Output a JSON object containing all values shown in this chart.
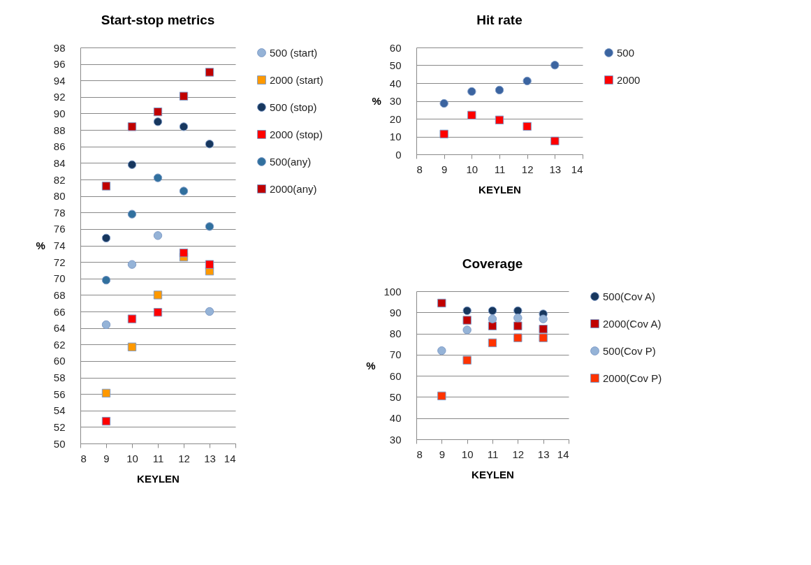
{
  "chart_data": [
    {
      "type": "scatter",
      "title": "Start-stop metrics",
      "xlabel": "KEYLEN",
      "ylabel": "%",
      "x": [
        9,
        10,
        11,
        12,
        13
      ],
      "xlim": [
        8,
        14
      ],
      "xticks": [
        8,
        9,
        10,
        11,
        12,
        13,
        14
      ],
      "ylim": [
        50,
        98
      ],
      "yticks": [
        50,
        52,
        54,
        56,
        58,
        60,
        62,
        64,
        66,
        68,
        70,
        72,
        74,
        76,
        78,
        80,
        82,
        84,
        86,
        88,
        90,
        92,
        94,
        96,
        98
      ],
      "grid": "y",
      "legend": "right",
      "series": [
        {
          "name": "500 (start)",
          "color": "#95b3d7",
          "marker": "circle",
          "values": [
            64.4,
            71.7,
            75.2,
            null,
            66.0
          ]
        },
        {
          "name": "2000 (start)",
          "color": "#ff9900",
          "marker": "square",
          "values": [
            56.1,
            61.7,
            68.0,
            72.6,
            70.9
          ]
        },
        {
          "name": "500 (stop)",
          "color": "#17375e",
          "marker": "circle",
          "values": [
            74.9,
            83.8,
            89.0,
            88.4,
            86.3
          ]
        },
        {
          "name": "2000 (stop)",
          "color": "#ff0000",
          "marker": "square",
          "values": [
            52.7,
            65.1,
            65.9,
            73.1,
            71.7
          ]
        },
        {
          "name": "500(any)",
          "color": "#31709e",
          "marker": "circle",
          "values": [
            69.8,
            77.8,
            82.2,
            80.6,
            76.3
          ]
        },
        {
          "name": "2000(any)",
          "color": "#c00000",
          "marker": "square",
          "values": [
            81.2,
            88.4,
            90.2,
            92.1,
            95.0
          ]
        }
      ]
    },
    {
      "type": "scatter",
      "title": "Hit rate",
      "xlabel": "KEYLEN",
      "ylabel": "%",
      "x": [
        9,
        10,
        11,
        12,
        13
      ],
      "xlim": [
        8,
        14
      ],
      "xticks": [
        8,
        9,
        10,
        11,
        12,
        13,
        14
      ],
      "ylim": [
        0,
        60
      ],
      "yticks": [
        0,
        10,
        20,
        30,
        40,
        50,
        60
      ],
      "grid": "y",
      "legend": "right",
      "series": [
        {
          "name": "500",
          "color": "#3b64a0",
          "marker": "circle",
          "values": [
            28.6,
            35.3,
            36.1,
            41.2,
            50.1
          ]
        },
        {
          "name": "2000",
          "color": "#ff0000",
          "marker": "square",
          "values": [
            11.4,
            22.0,
            19.3,
            15.7,
            7.5
          ]
        }
      ]
    },
    {
      "type": "scatter",
      "title": "Coverage",
      "xlabel": "KEYLEN",
      "ylabel": "%",
      "x": [
        9,
        10,
        11,
        12,
        13
      ],
      "xlim": [
        8,
        14
      ],
      "xticks": [
        8,
        9,
        10,
        11,
        12,
        13,
        14
      ],
      "ylim": [
        30,
        100
      ],
      "yticks": [
        30,
        40,
        50,
        60,
        70,
        80,
        90,
        100
      ],
      "grid": "y",
      "legend": "right",
      "series": [
        {
          "name": "500(Cov A)",
          "color": "#17375e",
          "marker": "circle",
          "values": [
            null,
            90.8,
            90.8,
            90.8,
            89.3
          ]
        },
        {
          "name": "2000(Cov A)",
          "color": "#c00000",
          "marker": "square",
          "values": [
            94.4,
            86.3,
            83.6,
            83.6,
            82.1
          ]
        },
        {
          "name": "500(Cov P)",
          "color": "#95b3d7",
          "marker": "circle",
          "values": [
            71.9,
            81.7,
            86.9,
            87.4,
            86.9
          ]
        },
        {
          "name": "2000(Cov P)",
          "color": "#ff3300",
          "marker": "square",
          "values": [
            50.5,
            67.4,
            75.6,
            78.0,
            78.0
          ]
        }
      ]
    }
  ]
}
